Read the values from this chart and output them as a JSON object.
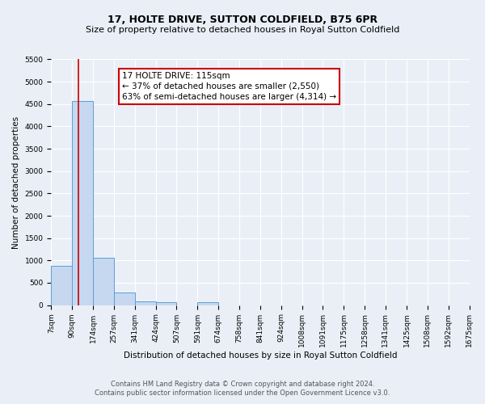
{
  "title": "17, HOLTE DRIVE, SUTTON COLDFIELD, B75 6PR",
  "subtitle": "Size of property relative to detached houses in Royal Sutton Coldfield",
  "xlabel": "Distribution of detached houses by size in Royal Sutton Coldfield",
  "ylabel": "Number of detached properties",
  "footer1": "Contains HM Land Registry data © Crown copyright and database right 2024.",
  "footer2": "Contains public sector information licensed under the Open Government Licence v3.0.",
  "annotation_title": "17 HOLTE DRIVE: 115sqm",
  "annotation_line1": "← 37% of detached houses are smaller (2,550)",
  "annotation_line2": "63% of semi-detached houses are larger (4,314) →",
  "property_size": 115,
  "bin_edges": [
    7,
    90,
    174,
    257,
    341,
    424,
    507,
    591,
    674,
    758,
    841,
    924,
    1008,
    1091,
    1175,
    1258,
    1341,
    1425,
    1508,
    1592,
    1675
  ],
  "bin_labels": [
    "7sqm",
    "90sqm",
    "174sqm",
    "257sqm",
    "341sqm",
    "424sqm",
    "507sqm",
    "591sqm",
    "674sqm",
    "758sqm",
    "841sqm",
    "924sqm",
    "1008sqm",
    "1091sqm",
    "1175sqm",
    "1258sqm",
    "1341sqm",
    "1425sqm",
    "1508sqm",
    "1592sqm",
    "1675sqm"
  ],
  "bar_values": [
    880,
    4560,
    1060,
    290,
    75,
    60,
    0,
    60,
    0,
    0,
    0,
    0,
    0,
    0,
    0,
    0,
    0,
    0,
    0,
    0
  ],
  "bar_color": "#c5d8ef",
  "bar_edge_color": "#5a9fd4",
  "vline_color": "#cc0000",
  "vline_x": 115,
  "ylim": [
    0,
    5500
  ],
  "yticks": [
    0,
    500,
    1000,
    1500,
    2000,
    2500,
    3000,
    3500,
    4000,
    4500,
    5000,
    5500
  ],
  "bg_color": "#eaeff7",
  "plot_bg_color": "#eaeff7",
  "annotation_box_color": "#ffffff",
  "annotation_box_edge": "#cc0000",
  "title_fontsize": 9,
  "subtitle_fontsize": 8,
  "axis_label_fontsize": 7.5,
  "tick_fontsize": 6.5,
  "footer_fontsize": 6,
  "annotation_fontsize": 7.5
}
